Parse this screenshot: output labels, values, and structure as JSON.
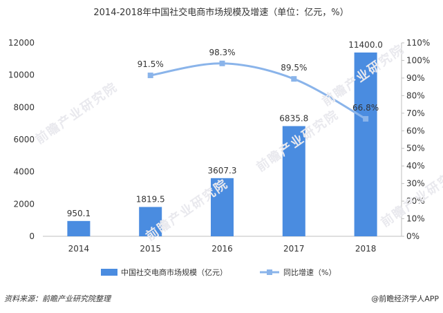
{
  "chart_data": {
    "type": "bar",
    "title": "2014-2018年中国社交电商市场规模及增速（单位：亿元，%）",
    "categories": [
      "2014",
      "2015",
      "2016",
      "2017",
      "2018"
    ],
    "series": [
      {
        "name": "中国社交电商市场规模（亿元）",
        "type": "bar",
        "axis": "left",
        "values": [
          950.1,
          1819.5,
          3607.3,
          6835.8,
          11400.0
        ],
        "labels": [
          "950.1",
          "1819.5",
          "3607.3",
          "6835.8",
          "11400.0"
        ],
        "color": "#4a8ce0"
      },
      {
        "name": "同比增速（%）",
        "type": "line",
        "axis": "right",
        "x": [
          "2015",
          "2016",
          "2017",
          "2018"
        ],
        "values": [
          91.5,
          98.3,
          89.5,
          66.8
        ],
        "labels": [
          "91.5%",
          "98.3%",
          "89.5%",
          "66.8%"
        ],
        "color": "#8ab4ea"
      }
    ],
    "y_left": {
      "min": 0,
      "max": 12000,
      "ticks": [
        "0",
        "2000",
        "4000",
        "6000",
        "8000",
        "10000",
        "12000"
      ]
    },
    "y_right": {
      "min": 0,
      "max": 110,
      "ticks": [
        "0%",
        "10%",
        "20%",
        "30%",
        "40%",
        "50%",
        "60%",
        "70%",
        "80%",
        "90%",
        "100%",
        "110%"
      ]
    },
    "grid": false,
    "legend_position": "bottom"
  },
  "footer": {
    "source": "资料来源：前瞻产业研究院整理",
    "brand": "@前瞻经济学人APP"
  },
  "watermark_text": "前瞻产业研究院"
}
